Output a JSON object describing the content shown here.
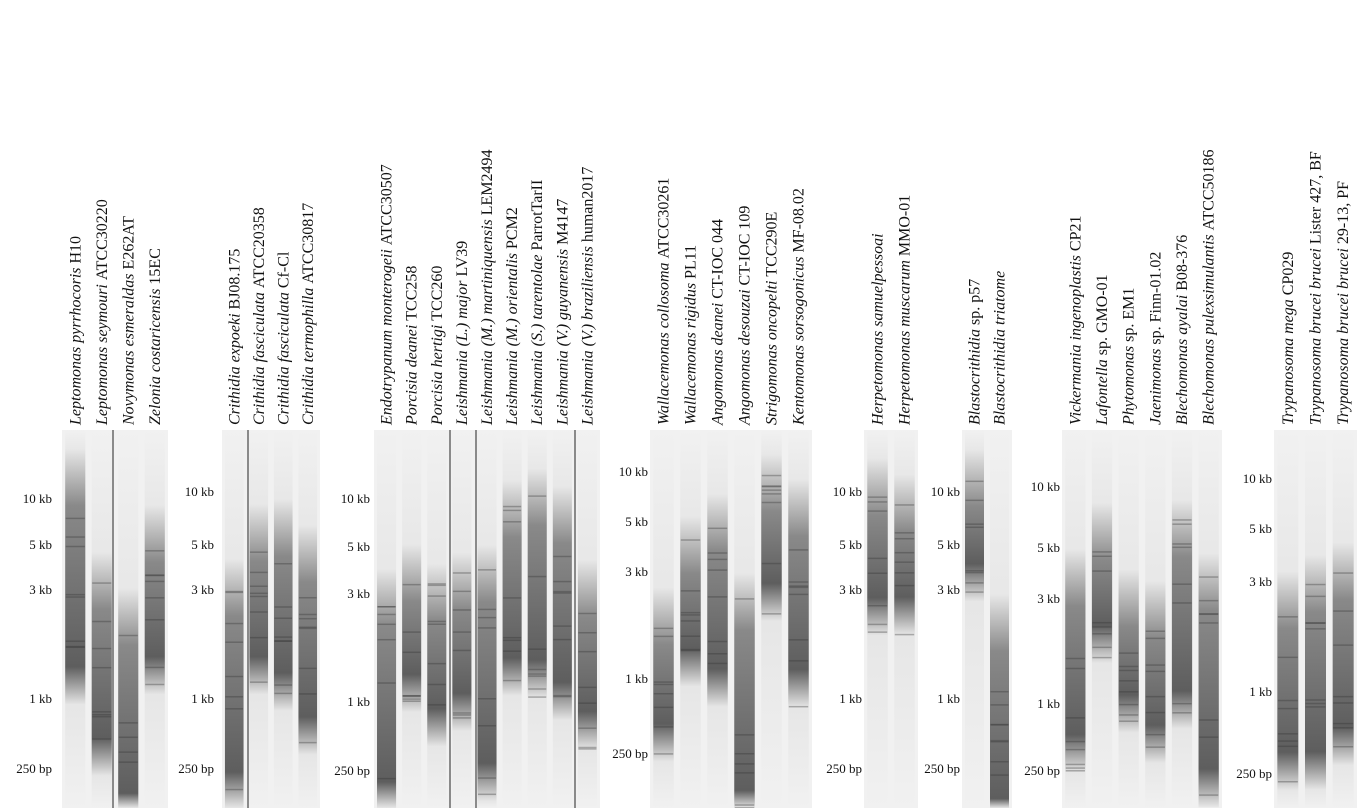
{
  "panels": [
    {
      "markers": [
        "10 kb",
        "5 kb",
        "3 kb",
        "1 kb",
        "250 bp"
      ],
      "lanes": [
        {
          "name": "Leptomonas pyrrhocoris",
          "strain": "H10"
        },
        {
          "name": "Leptomonas seymouri",
          "strain": "ATCC30220"
        },
        {
          "name": "Novymonas esmeraldas",
          "strain": "E262AT"
        },
        {
          "name": "Zelonia costaricensis",
          "strain": "15EC"
        }
      ]
    },
    {
      "markers": [
        "10 kb",
        "5 kb",
        "3 kb",
        "1 kb",
        "250 bp"
      ],
      "lanes": [
        {
          "name": "Crithidia expoeki",
          "strain": "BJ08.175"
        },
        {
          "name": "Crithidia fasciculata",
          "strain": "ATCC20358"
        },
        {
          "name": "Crithidia fasciculata",
          "strain": "Cf-Cl"
        },
        {
          "name": "Crithidia termophilla",
          "strain": "ATCC30817"
        }
      ]
    },
    {
      "markers": [
        "10 kb",
        "5 kb",
        "3 kb",
        "1 kb",
        "250 bp"
      ],
      "lanes": [
        {
          "name": "Endotrypanum monterogeii",
          "strain": "ATCC30507"
        },
        {
          "name": "Porcisia deanei",
          "strain": "TCC258"
        },
        {
          "name": "Porcisia hertigi",
          "strain": "TCC260"
        },
        {
          "name": "Leishmania (L.) major",
          "strain": "LV39"
        },
        {
          "name": "Leishmania (M.) martiniquensis",
          "strain": "LEM2494"
        },
        {
          "name": "Leishmania (M.) orientalis",
          "strain": "PCM2"
        },
        {
          "name": "Leishmania (S.) tarentolae",
          "strain": "ParrotTarII"
        },
        {
          "name": "Leishmania (V.) guyanensis",
          "strain": "M4147"
        },
        {
          "name": "Leishmania (V.) braziliensis",
          "strain": "human2017"
        }
      ]
    },
    {
      "markers": [
        "10 kb",
        "5 kb",
        "3 kb",
        "1 kb",
        "250 bp"
      ],
      "lanes": [
        {
          "name": "Wallacemonas collosoma",
          "strain": "ATCC30261"
        },
        {
          "name": "Wallacemonas rigidus",
          "strain": "PL11"
        },
        {
          "name": "Angomonas deanei",
          "strain": "CT-IOC 044"
        },
        {
          "name": "Angomonas desouzai",
          "strain": "CT-IOC 109"
        },
        {
          "name": "Strigomonas oncopelti",
          "strain": "TCC290E"
        },
        {
          "name": "Kentomonas sorsogonicus",
          "strain": "MF-08.02"
        }
      ]
    },
    {
      "markers": [
        "10 kb",
        "5 kb",
        "3 kb",
        "1 kb",
        "250 bp"
      ],
      "lanes": [
        {
          "name": "Herpetomonas samuelpessoai"
        },
        {
          "name": "Herpetomonas muscarum",
          "strain": "MMO-01"
        }
      ]
    },
    {
      "markers": [
        "10 kb",
        "5 kb",
        "3 kb",
        "1 kb",
        "250 bp"
      ],
      "lanes": [
        {
          "name": "Blastocrithidia",
          "strain": "sp. p57"
        },
        {
          "name": "Blastocrithidia triatome"
        }
      ]
    },
    {
      "markers": [
        "10 kb",
        "5 kb",
        "3 kb",
        "1 kb",
        "250 bp"
      ],
      "lanes": [
        {
          "name": "Vickermania ingenoplastis",
          "strain": "CP21"
        },
        {
          "name": "Lafontella",
          "strain": "sp. GMO-01"
        },
        {
          "name": "Phytomonas",
          "strain": "sp. EM1"
        },
        {
          "name": "Jaenimonas",
          "strain": "sp. Finn-01.02"
        },
        {
          "name": "Blechomonas ayalai",
          "strain": "B08-376"
        },
        {
          "name": "Blechomonas pulexsimulantis",
          "strain": "ATCC50186"
        }
      ]
    },
    {
      "markers": [
        "10 kb",
        "5 kb",
        "3 kb",
        "1 kb",
        "250 bp"
      ],
      "lanes": [
        {
          "name": "Trypanosoma mega",
          "strain": "CP029"
        },
        {
          "name": "Trypanosoma brucei brucei",
          "strain": "Lister 427, BF"
        },
        {
          "name": "Trypanosoma brucei brucei",
          "strain": "29-13, PF"
        }
      ]
    }
  ]
}
